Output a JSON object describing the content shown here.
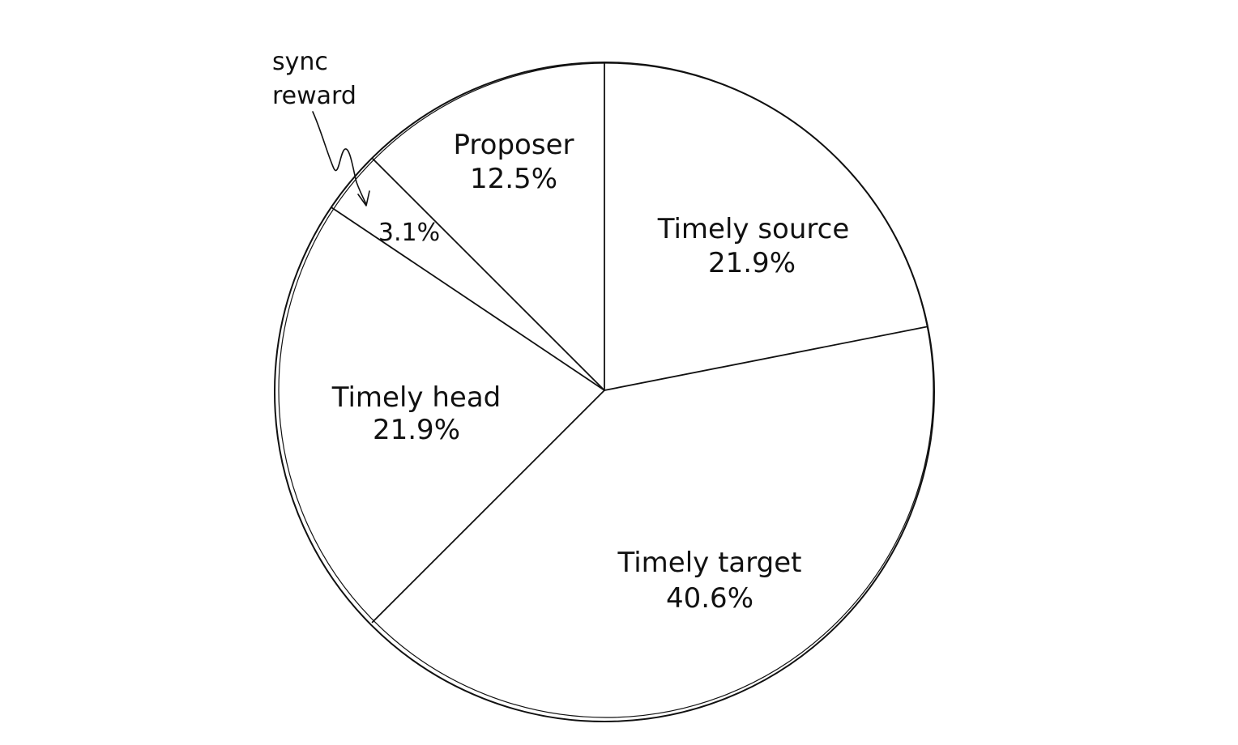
{
  "chart_data": {
    "type": "pie",
    "title": "",
    "start_angle_deg": 0,
    "direction": "clockwise",
    "slices": [
      {
        "label": "Timely source",
        "value": 21.9,
        "value_label": "21.9%"
      },
      {
        "label": "Timely target",
        "value": 40.6,
        "value_label": "40.6%"
      },
      {
        "label": "Timely head",
        "value": 21.9,
        "value_label": "21.9%"
      },
      {
        "label": "Sync reward",
        "value": 3.1,
        "value_label": "3.1%"
      },
      {
        "label": "Proposer",
        "value": 12.5,
        "value_label": "12.5%"
      }
    ],
    "callout": {
      "line1": "sync",
      "line2": "reward"
    },
    "colors": {
      "fill": "#ffffff",
      "stroke": "#111111"
    }
  }
}
